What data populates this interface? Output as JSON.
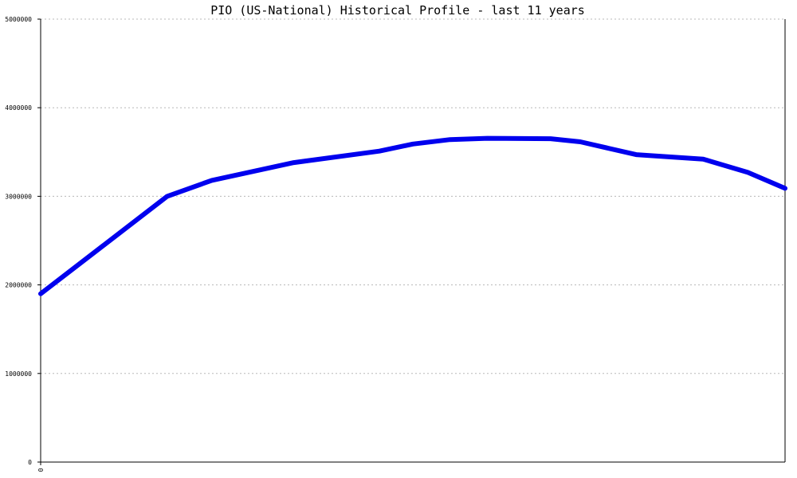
{
  "chart_data": {
    "type": "line",
    "title": "PIO (US-National) Historical Profile - last 11 years",
    "xlabel": "",
    "ylabel": "",
    "x_tick_labels": [
      "0"
    ],
    "ylim": [
      0,
      5000000
    ],
    "y_ticks": [
      0,
      1000000,
      2000000,
      3000000,
      4000000,
      5000000
    ],
    "y_tick_labels": [
      "0",
      "1000000",
      "2000000",
      "3000000",
      "4000000",
      "5000000"
    ],
    "grid": true,
    "x": [
      0,
      0.85,
      1.7,
      2.3,
      3.4,
      4.55,
      5.0,
      5.5,
      6.0,
      6.85,
      7.25,
      8.0,
      8.9,
      9.5,
      10.0
    ],
    "series": [
      {
        "name": "",
        "color": "#0000ee",
        "values": [
          1900000,
          2450000,
          3000000,
          3180000,
          3380000,
          3510000,
          3590000,
          3640000,
          3655000,
          3650000,
          3615000,
          3470000,
          3420000,
          3270000,
          3090000
        ]
      }
    ]
  }
}
